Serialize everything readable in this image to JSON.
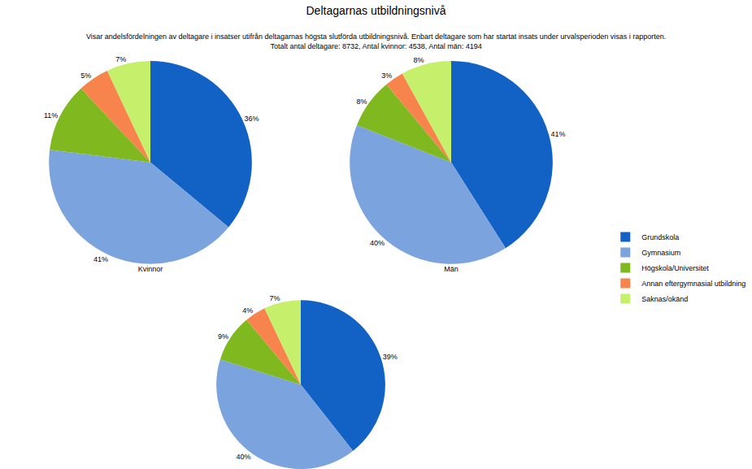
{
  "title": "Deltagarnas utbildningsnivå",
  "subtitle": [
    "Visar andelsfördelningen av deltagare i insatser utifrån deltagarnas högsta slutförda utbildningsnivå. Enbart deltagare som har startat insats under urvalsperioden visas i rapporten.",
    "Totalt antal deltagare: 8732, Antal kvinnor: 4538, Antal män: 4194"
  ],
  "chart_data": [
    {
      "type": "pie",
      "title": "Kvinnor",
      "categories": [
        "Grundskola",
        "Gymnasium",
        "Högskola/Universitet",
        "Annan eftergymnasial utbildning",
        "Saknas/okänd"
      ],
      "values": [
        36,
        41,
        11,
        5,
        7
      ],
      "value_labels": [
        "36%",
        "41%",
        "11%",
        "5%",
        "7%"
      ],
      "colors": [
        "#1261c4",
        "#7ba3de",
        "#7fb91f",
        "#f7834d",
        "#c6ef6b"
      ],
      "data_labels": true,
      "legend": "right"
    },
    {
      "type": "pie",
      "title": "Män",
      "categories": [
        "Grundskola",
        "Gymnasium",
        "Högskola/Universitet",
        "Annan eftergymnasial utbildning",
        "Saknas/okänd"
      ],
      "values": [
        41,
        40,
        8,
        3,
        8
      ],
      "value_labels": [
        "41%",
        "40%",
        "8%",
        "3%",
        "8%"
      ],
      "colors": [
        "#1261c4",
        "#7ba3de",
        "#7fb91f",
        "#f7834d",
        "#c6ef6b"
      ],
      "data_labels": true,
      "legend": "right"
    },
    {
      "type": "pie",
      "categories": [
        "Grundskola",
        "Gymnasium",
        "Högskola/Universitet",
        "Annan eftergymnasial utbildning",
        "Saknas/okänd"
      ],
      "values": [
        39,
        40,
        9,
        4,
        7
      ],
      "value_labels": [
        "39%",
        "40%",
        "9%",
        "4%",
        "7%"
      ],
      "colors": [
        "#1261c4",
        "#7ba3de",
        "#7fb91f",
        "#f7834d",
        "#c6ef6b"
      ],
      "data_labels": true,
      "legend": "right"
    }
  ]
}
